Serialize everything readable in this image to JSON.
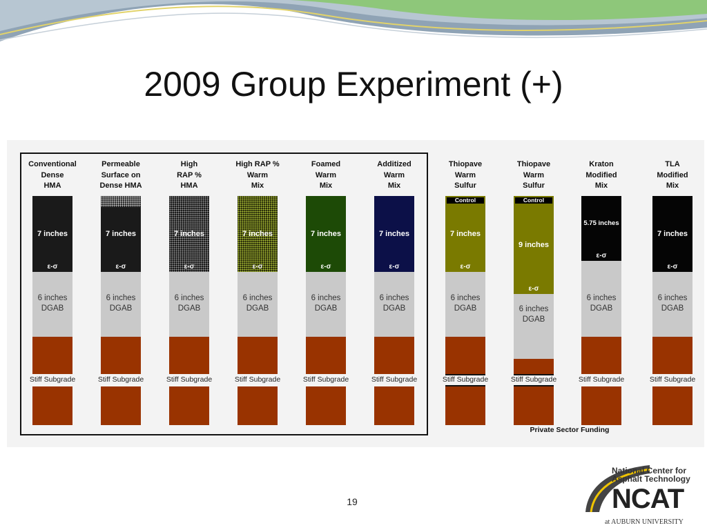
{
  "slide": {
    "title": "2009 Group Experiment (+)",
    "page_number": "19"
  },
  "sections": [
    {
      "id": "col-conventional-dense-hma",
      "header": [
        "Conventional",
        "Dense",
        "HMA"
      ],
      "surface_label": "7 inches",
      "surface_color": "#1a1a1a",
      "surface_pattern": "solid",
      "strain_label": "ε-σ",
      "base_label": [
        "6 inches",
        "DGAB"
      ],
      "subgrade_label": "Stiff Subgrade"
    },
    {
      "id": "col-permeable-surface",
      "header": [
        "Permeable",
        "Surface on",
        "Dense HMA"
      ],
      "surface_label": "7 inches",
      "surface_color": "#1a1a1a",
      "surface_pattern": "permeable-top",
      "strain_label": "ε-σ",
      "base_label": [
        "6 inches",
        "DGAB"
      ],
      "subgrade_label": "Stiff Subgrade"
    },
    {
      "id": "col-high-rap-hma",
      "header": [
        "High",
        "RAP %",
        "HMA"
      ],
      "surface_label": "7 inches",
      "surface_color": "#1a1a1a",
      "surface_pattern": "dots-white",
      "strain_label": "ε-σ",
      "base_label": [
        "6 inches",
        "DGAB"
      ],
      "subgrade_label": "Stiff Subgrade"
    },
    {
      "id": "col-high-rap-warm-mix",
      "header": [
        "High RAP %",
        "Warm",
        "Mix"
      ],
      "surface_label": "7 inches",
      "surface_color": "#2a2e0a",
      "surface_pattern": "dots-green",
      "strain_label": "ε-σ",
      "base_label": [
        "6 inches",
        "DGAB"
      ],
      "subgrade_label": "Stiff Subgrade"
    },
    {
      "id": "col-foamed-warm-mix",
      "header": [
        "Foamed",
        "Warm",
        "Mix"
      ],
      "surface_label": "7 inches",
      "surface_color": "#1d4a06",
      "surface_pattern": "solid",
      "strain_label": "ε-σ",
      "base_label": [
        "6 inches",
        "DGAB"
      ],
      "subgrade_label": "Stiff Subgrade"
    },
    {
      "id": "col-additized-warm-mix",
      "header": [
        "Additized",
        "Warm",
        "Mix"
      ],
      "surface_label": "7 inches",
      "surface_color": "#0c1048",
      "surface_pattern": "solid",
      "strain_label": "ε-σ",
      "base_label": [
        "6 inches",
        "DGAB"
      ],
      "subgrade_label": "Stiff Subgrade"
    },
    {
      "id": "col-thiopave-7",
      "header": [
        "Thiopave",
        "Warm",
        "Sulfur"
      ],
      "control_label": "Control",
      "surface_label": "7 inches",
      "surface_color": "#7a7a00",
      "surface_pattern": "solid",
      "strain_label": "ε-σ",
      "base_label": [
        "6 inches",
        "DGAB"
      ],
      "subgrade_label": "Stiff Subgrade"
    },
    {
      "id": "col-thiopave-9",
      "header": [
        "Thiopave",
        "Warm",
        "Sulfur"
      ],
      "control_label": "Control",
      "surface_label": "9 inches",
      "surface_color": "#7a7a00",
      "surface_pattern": "solid",
      "strain_label": "ε-σ",
      "base_label": [
        "6 inches",
        "DGAB"
      ],
      "subgrade_label": "Stiff Subgrade"
    },
    {
      "id": "col-kraton-modified-mix",
      "header": [
        "Kraton",
        "Modified",
        "Mix"
      ],
      "surface_label": "5.75 inches",
      "surface_color": "#050505",
      "surface_pattern": "solid",
      "strain_label": "ε-σ",
      "base_label": [
        "6 inches",
        "DGAB"
      ],
      "subgrade_label": "Stiff Subgrade"
    },
    {
      "id": "col-tla-modified-mix",
      "header": [
        "TLA",
        "Modified",
        "Mix"
      ],
      "surface_label": "7 inches",
      "surface_color": "#050505",
      "surface_pattern": "solid",
      "strain_label": "ε-σ",
      "base_label": [
        "6 inches",
        "DGAB"
      ],
      "subgrade_label": "Stiff Subgrade"
    }
  ],
  "colors": {
    "base": "#c9c9c9",
    "subgrade": "#993300",
    "surface_text": "#ffffff"
  },
  "footnote": "Private Sector Funding",
  "logo": {
    "line1": "National Center for",
    "line2": "Asphalt Technology",
    "main": "NCAT",
    "sub": "at AUBURN UNIVERSITY"
  }
}
